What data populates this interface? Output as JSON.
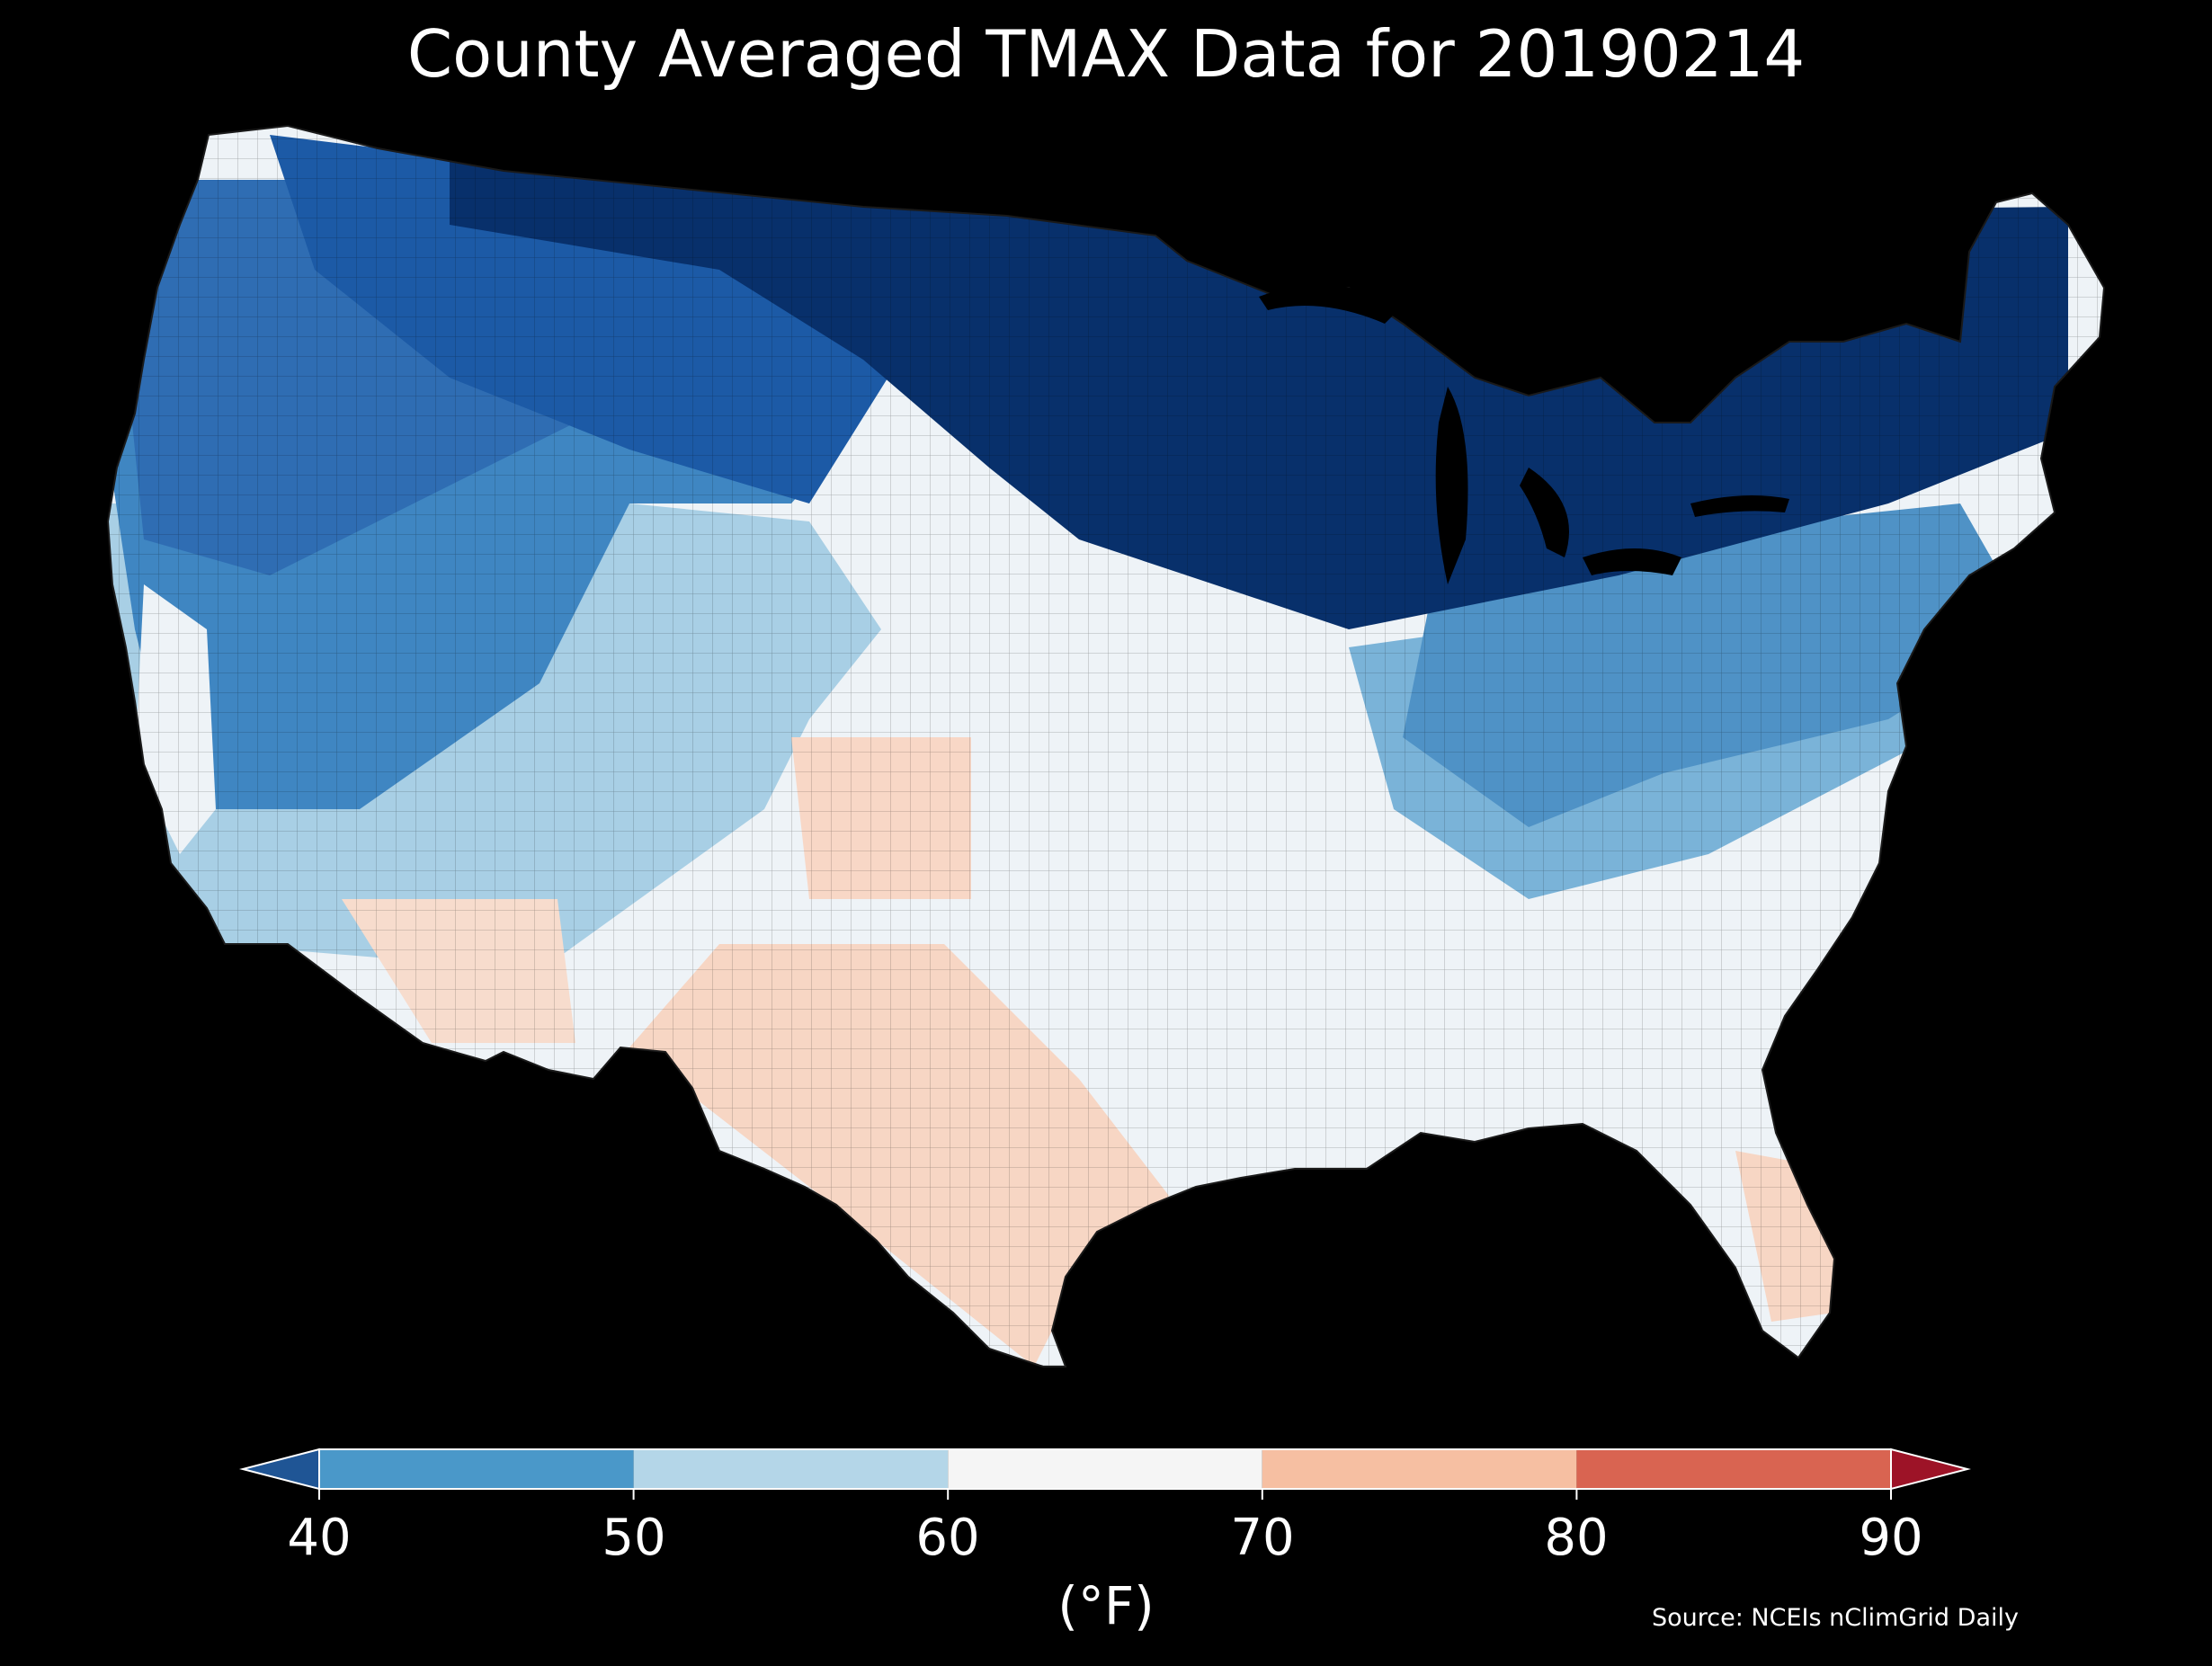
{
  "title": "County Averaged TMAX Data for 20190214",
  "colorbar": {
    "label": "(°F)",
    "ticks": [
      "40",
      "50",
      "60",
      "70",
      "80",
      "90"
    ],
    "bins": [
      {
        "range": "<40",
        "color": "#1f5595"
      },
      {
        "range": "40-50",
        "color": "#4a98c9"
      },
      {
        "range": "50-60",
        "color": "#b4d6e8"
      },
      {
        "range": "60-70",
        "color": "#f5f5f5"
      },
      {
        "range": "70-80",
        "color": "#f6bfa2"
      },
      {
        "range": "80-90",
        "color": "#d96451"
      },
      {
        "range": ">90",
        "color": "#9d1327"
      }
    ]
  },
  "source": "Source: NCEIs nClimGrid Daily",
  "map_regions": [
    {
      "region": "northern-plains-upper-midwest",
      "band": "<40",
      "color": "#08306b"
    },
    {
      "region": "northern-rockies",
      "band": "<40",
      "color": "#1c5aa6"
    },
    {
      "region": "pacific-northwest-great-basin",
      "band": "40-50",
      "color": "#2f6db3"
    },
    {
      "region": "central-rockies",
      "band": "40-50",
      "color": "#3f86c2"
    },
    {
      "region": "mid-atlantic-ohio-valley",
      "band": "40-50",
      "color": "#4f92c6"
    },
    {
      "region": "southwest-desert-california",
      "band": "50-60",
      "color": "#a8cfe5"
    },
    {
      "region": "southeast-gulf",
      "band": "60-70",
      "color": "#eef3f7"
    },
    {
      "region": "texas-arizona-florida",
      "band": "70-80",
      "color": "#f7d6c4"
    }
  ]
}
